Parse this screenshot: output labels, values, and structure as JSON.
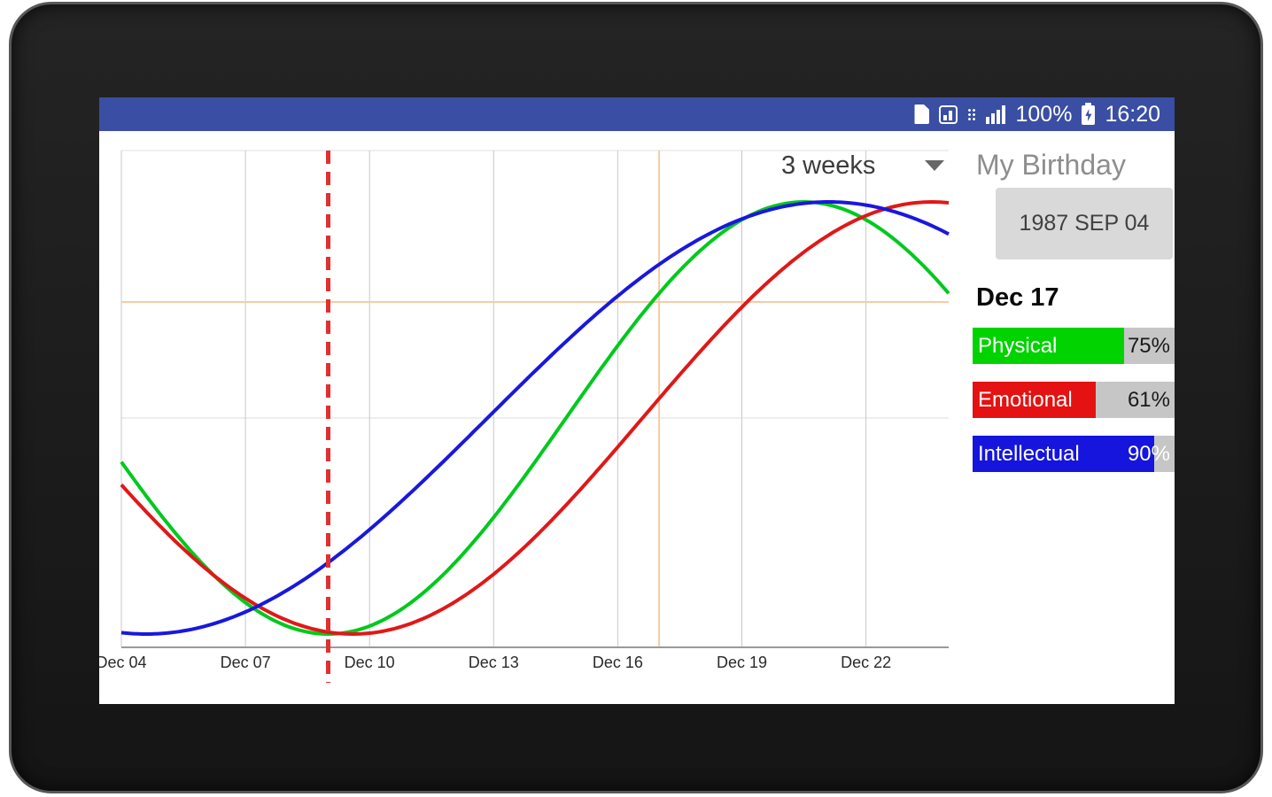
{
  "status_bar": {
    "battery_percent": "100%",
    "time": "16:20",
    "icons": [
      "file-icon",
      "stats-icon",
      "grid-dots-icon",
      "signal-icon",
      "battery-icon"
    ]
  },
  "chart_controls": {
    "range_selector": "3 weeks"
  },
  "panel": {
    "title": "My Birthday",
    "birthday_button": "1987 SEP 04",
    "selected_date": "Dec 17",
    "track_color": "#c6c6c6",
    "metrics": [
      {
        "name": "Physical",
        "value": 75,
        "display": "75%",
        "color": "#00d300",
        "pct_text_color": "#1a1a1a"
      },
      {
        "name": "Emotional",
        "value": 61,
        "display": "61%",
        "color": "#e41212",
        "pct_text_color": "#1a1a1a"
      },
      {
        "name": "Intellectual",
        "value": 90,
        "display": "90%",
        "color": "#1515dd",
        "pct_text_color": "#ffffff"
      }
    ]
  },
  "chart_data": {
    "type": "line",
    "x": {
      "tick_labels": [
        "Dec 04",
        "Dec 07",
        "Dec 10",
        "Dec 13",
        "Dec 16",
        "Dec 19",
        "Dec 22"
      ],
      "tick_interval_days": 3,
      "span_days": 20
    },
    "ylim": [
      -1,
      1
    ],
    "grid": true,
    "legend_position": "right-panel",
    "series": [
      {
        "name": "Physical",
        "color": "#00c91e",
        "period_days": 23,
        "min_at_day": 5.0
      },
      {
        "name": "Emotional",
        "color": "#e01818",
        "period_days": 28,
        "min_at_day": 5.6
      },
      {
        "name": "Intellectual",
        "color": "#1818dd",
        "period_days": 33,
        "min_at_day": 0.6
      }
    ],
    "markers": {
      "dashed_line_day": 5.0,
      "dashed_line_color": "#e03030",
      "crosshair_day": 13,
      "crosshair_color": "#f6cba6"
    },
    "selected": {
      "label": "Dec 17",
      "values_pct": {
        "Physical": 75,
        "Emotional": 61,
        "Intellectual": 90
      }
    }
  }
}
